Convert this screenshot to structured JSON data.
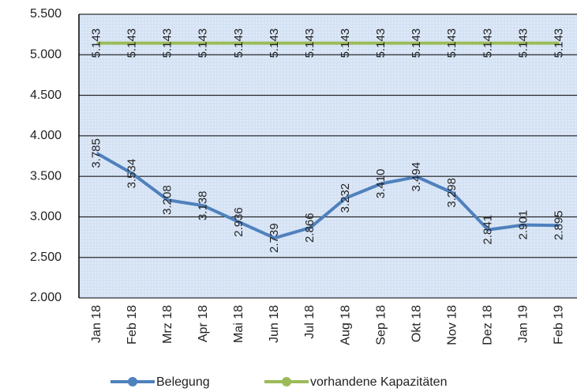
{
  "chart_data": {
    "type": "line",
    "categories": [
      "Jan 18",
      "Feb 18",
      "Mrz 18",
      "Apr 18",
      "Mai 18",
      "Jun 18",
      "Jul 18",
      "Aug 18",
      "Sep 18",
      "Okt 18",
      "Nov 18",
      "Dez 18",
      "Jan 19",
      "Feb 19"
    ],
    "series": [
      {
        "name": "Belegung",
        "color": "#4f81bd",
        "values": [
          3785,
          3534,
          3208,
          3138,
          2936,
          2739,
          2866,
          3232,
          3410,
          3494,
          3298,
          2841,
          2901,
          2895
        ],
        "value_labels": [
          "3.785",
          "3.534",
          "3.208",
          "3.138",
          "2.936",
          "2.739",
          "2.866",
          "3.232",
          "3.410",
          "3.494",
          "3.298",
          "2.841",
          "2.901",
          "2.895"
        ]
      },
      {
        "name": "vorhandene Kapazitäten",
        "color": "#9bbb59",
        "values": [
          5143,
          5143,
          5143,
          5143,
          5143,
          5143,
          5143,
          5143,
          5143,
          5143,
          5143,
          5143,
          5143,
          5143
        ],
        "value_labels": [
          "5.143",
          "5.143",
          "5.143",
          "5.143",
          "5.143",
          "5.143",
          "5.143",
          "5.143",
          "5.143",
          "5.143",
          "5.143",
          "5.143",
          "5.143",
          "5.143"
        ]
      }
    ],
    "ylim": [
      2000,
      5500
    ],
    "yticks": [
      {
        "value": 2000,
        "label": "2.000"
      },
      {
        "value": 2500,
        "label": "2.500"
      },
      {
        "value": 3000,
        "label": "3.000"
      },
      {
        "value": 3500,
        "label": "3.500"
      },
      {
        "value": 4000,
        "label": "4.000"
      },
      {
        "value": 4500,
        "label": "4.500"
      },
      {
        "value": 5000,
        "label": "5.000"
      },
      {
        "value": 5500,
        "label": "5.500"
      }
    ],
    "grid": true,
    "legend": "bottom"
  }
}
